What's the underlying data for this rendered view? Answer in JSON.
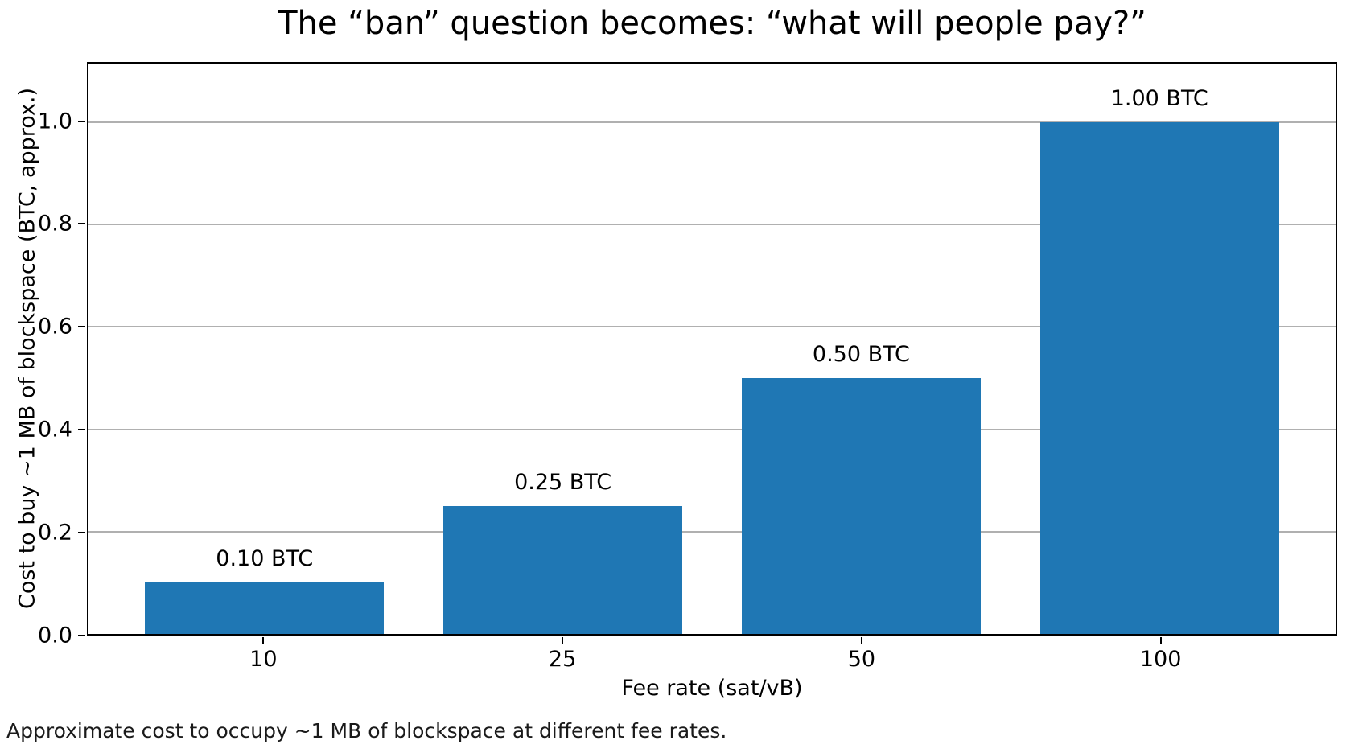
{
  "title": "The “ban” question becomes: “what will people pay?”",
  "caption": "Approximate cost to occupy ~1 MB of blockspace at different fee rates.",
  "chart_data": {
    "type": "bar",
    "title": "The “ban” question becomes: “what will people pay?”",
    "categories": [
      "10",
      "25",
      "50",
      "100"
    ],
    "values": [
      0.1,
      0.25,
      0.5,
      1.0
    ],
    "bar_labels": [
      "0.10 BTC",
      "0.25 BTC",
      "0.50 BTC",
      "1.00 BTC"
    ],
    "xlabel": "Fee rate (sat/vB)",
    "ylabel": "Cost to buy ~1 MB of blockspace (BTC, approx.)",
    "yticks": [
      "0.0",
      "0.2",
      "0.4",
      "0.6",
      "0.8",
      "1.0"
    ],
    "ylim": [
      0,
      1.115
    ],
    "bar_width_fraction": 0.8,
    "x_margin_fraction": 0.59,
    "grid": "horizontal",
    "legend": "none",
    "caption": "Approximate cost to occupy ~1 MB of blockspace at different fee rates.",
    "colors": {
      "bar": "#1f77b4",
      "grid": "#b0b0b0",
      "frame": "#000000",
      "text": "#000000",
      "background": "#ffffff"
    }
  }
}
